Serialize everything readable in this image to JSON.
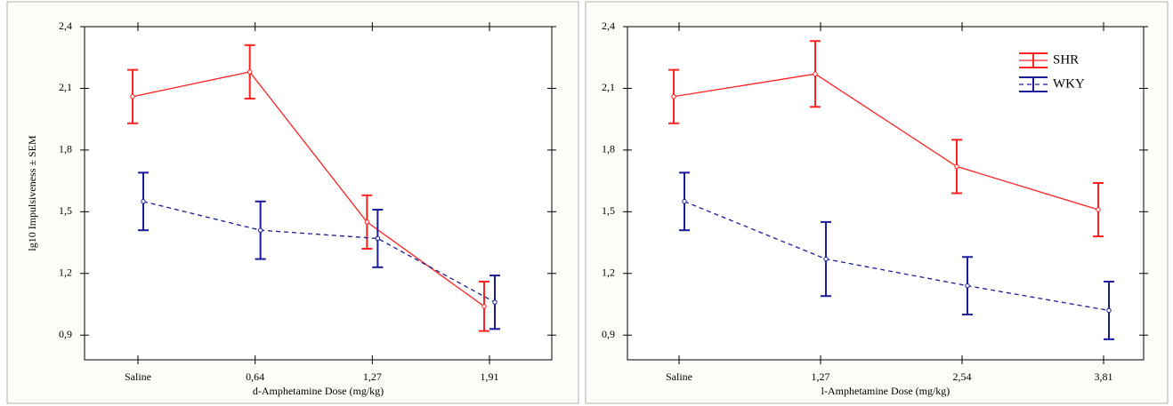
{
  "chart_data": [
    {
      "type": "line",
      "xlabel": "d-Amphetamine Dose (mg/kg)",
      "ylabel": "lg10 Impulsiveness ± SEM",
      "categories": [
        "Saline",
        "0,64",
        "1,27",
        "1,91"
      ],
      "ylim": [
        0.78,
        2.4
      ],
      "yticks": [
        {
          "value": 0.9,
          "label": "0,9"
        },
        {
          "value": 1.2,
          "label": "1,2"
        },
        {
          "value": 1.5,
          "label": "1,5"
        },
        {
          "value": 1.8,
          "label": "1,8"
        },
        {
          "value": 2.1,
          "label": "2,1"
        },
        {
          "value": 2.4,
          "label": "2,4"
        }
      ],
      "series": [
        {
          "color": "#ff2020",
          "linestyle": "solid",
          "values": [
            2.06,
            2.18,
            1.45,
            1.04
          ],
          "errors": [
            0.13,
            0.13,
            0.13,
            0.12
          ]
        },
        {
          "color": "#1a1a9a",
          "linestyle": "dashed",
          "values": [
            1.55,
            1.41,
            1.37,
            1.06
          ],
          "errors": [
            0.14,
            0.14,
            0.14,
            0.13
          ]
        }
      ]
    },
    {
      "type": "line",
      "xlabel": "l-Amphetamine Dose (mg/kg)",
      "categories": [
        "Saline",
        "1,27",
        "2,54",
        "3,81"
      ],
      "ylim": [
        0.78,
        2.4
      ],
      "yticks": [
        {
          "value": 0.9,
          "label": "0,9"
        },
        {
          "value": 1.2,
          "label": "1,2"
        },
        {
          "value": 1.5,
          "label": "1,5"
        },
        {
          "value": 1.8,
          "label": "1,8"
        },
        {
          "value": 2.1,
          "label": "2,1"
        },
        {
          "value": 2.4,
          "label": "2,4"
        }
      ],
      "legend": "upper right",
      "series": [
        {
          "name": "SHR",
          "color": "#ff2020",
          "linestyle": "solid",
          "values": [
            2.06,
            2.17,
            1.72,
            1.51
          ],
          "errors": [
            0.13,
            0.16,
            0.13,
            0.13
          ]
        },
        {
          "name": "WKY",
          "color": "#1a1a9a",
          "linestyle": "dashed",
          "values": [
            1.55,
            1.27,
            1.14,
            1.02
          ],
          "errors": [
            0.14,
            0.18,
            0.14,
            0.14
          ]
        }
      ]
    }
  ]
}
